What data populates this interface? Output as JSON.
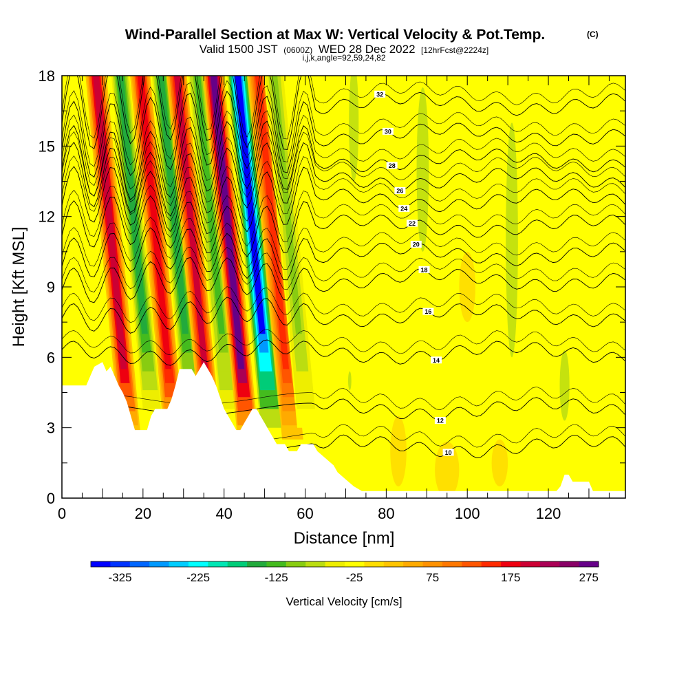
{
  "chart_data": {
    "type": "heatmap",
    "title": "Wind-Parallel Section at Max W: Vertical Velocity & Pot.Temp.",
    "title_mark": "(C)",
    "subtitle_parts": [
      "Valid 1500 JST",
      "(0600Z)",
      "WED 28 Dec 2022",
      "[12hrFcst@2224z]"
    ],
    "subtitle2": "i,j,k,angle=92,59,24,82",
    "xlabel": "Distance [nm]",
    "ylabel": "Height [Kft MSL]",
    "xlim": [
      0,
      139
    ],
    "ylim": [
      0,
      18
    ],
    "x_ticks": [
      0,
      20,
      40,
      60,
      80,
      100,
      120
    ],
    "y_ticks": [
      0,
      3,
      6,
      9,
      12,
      15,
      18
    ],
    "colorbar": {
      "label": "Vertical Velocity [cm/s]",
      "tick_labels": [
        -325,
        -225,
        -125,
        -25,
        75,
        175,
        275
      ],
      "min": -350,
      "max": 300,
      "step": 25,
      "colors": [
        "#0000ff",
        "#0033ff",
        "#0066ff",
        "#0099ff",
        "#00ccff",
        "#00ffff",
        "#00e6b4",
        "#00cc78",
        "#22aa3c",
        "#44bb1e",
        "#88cc11",
        "#bbdd11",
        "#eeee00",
        "#ffff00",
        "#ffdd00",
        "#ffc400",
        "#ffaa00",
        "#ff9100",
        "#ff7700",
        "#ff5500",
        "#ff2a00",
        "#ee0010",
        "#cc0033",
        "#aa0055",
        "#880066",
        "#660088"
      ]
    },
    "theta_contours": [
      {
        "label": "10",
        "height": 2.2
      },
      {
        "label": "12",
        "height": 3.8
      },
      {
        "label": "14",
        "height": 6.2
      },
      {
        "label": "16",
        "height": 7.8
      },
      {
        "label": "18",
        "height": 9.3
      },
      {
        "label": "20",
        "height": 10.4
      },
      {
        "label": "22",
        "height": 11.6
      },
      {
        "label": "24",
        "height": 12.7
      },
      {
        "label": "26",
        "height": 13.6
      },
      {
        "label": "28",
        "height": 14.4
      },
      {
        "label": "30",
        "height": 15.5
      },
      {
        "label": "32",
        "height": 16.8
      }
    ],
    "updraft_bands": [
      {
        "kind": "up",
        "center": 15,
        "amp": 210
      },
      {
        "kind": "down",
        "center": 21,
        "amp": -130
      },
      {
        "kind": "up",
        "center": 26,
        "amp": 190
      },
      {
        "kind": "down",
        "center": 31,
        "amp": -140
      },
      {
        "kind": "up",
        "center": 35,
        "amp": 200
      },
      {
        "kind": "down",
        "center": 40,
        "amp": -110
      },
      {
        "kind": "up",
        "center": 44,
        "amp": 290
      },
      {
        "kind": "down",
        "center": 50,
        "amp": -330
      },
      {
        "kind": "up",
        "center": 55,
        "amp": 170
      },
      {
        "kind": "down",
        "center": 59,
        "amp": -90
      }
    ],
    "terrain": [
      [
        0,
        4.8
      ],
      [
        6,
        4.8
      ],
      [
        7,
        5.2
      ],
      [
        8,
        5.6
      ],
      [
        10,
        5.8
      ],
      [
        11,
        5.4
      ],
      [
        12,
        5.6
      ],
      [
        13,
        5.2
      ],
      [
        14,
        4.8
      ],
      [
        15,
        4.5
      ],
      [
        16,
        4.1
      ],
      [
        17,
        3.5
      ],
      [
        18,
        2.9
      ],
      [
        21,
        2.9
      ],
      [
        22,
        3.5
      ],
      [
        23,
        3.8
      ],
      [
        26,
        3.8
      ],
      [
        27,
        4.2
      ],
      [
        28,
        4.8
      ],
      [
        29,
        5.5
      ],
      [
        32,
        5.5
      ],
      [
        33,
        5.2
      ],
      [
        34,
        5.5
      ],
      [
        35,
        5.8
      ],
      [
        36,
        5.5
      ],
      [
        37,
        5.2
      ],
      [
        38,
        4.8
      ],
      [
        39,
        4.3
      ],
      [
        40,
        3.8
      ],
      [
        41,
        3.5
      ],
      [
        42,
        3.2
      ],
      [
        43,
        2.9
      ],
      [
        44,
        2.9
      ],
      [
        45,
        3.2
      ],
      [
        46,
        3.5
      ],
      [
        47,
        3.8
      ],
      [
        48,
        3.8
      ],
      [
        49,
        3.5
      ],
      [
        50,
        3.2
      ],
      [
        51,
        2.9
      ],
      [
        52,
        2.6
      ],
      [
        53,
        2.3
      ],
      [
        55,
        2.3
      ],
      [
        56,
        2.0
      ],
      [
        58,
        2.0
      ],
      [
        59,
        2.3
      ],
      [
        62,
        2.3
      ],
      [
        63,
        2.0
      ],
      [
        65,
        1.7
      ],
      [
        67,
        1.4
      ],
      [
        68,
        1.1
      ],
      [
        70,
        0.8
      ],
      [
        72,
        0.5
      ],
      [
        74,
        0.3
      ],
      [
        78,
        0.3
      ],
      [
        104,
        0.3
      ],
      [
        122,
        0.3
      ],
      [
        123,
        0.5
      ],
      [
        124,
        1.0
      ],
      [
        125,
        1.0
      ],
      [
        126,
        0.7
      ],
      [
        130,
        0.7
      ],
      [
        131,
        0.3
      ],
      [
        139,
        0.3
      ]
    ]
  }
}
